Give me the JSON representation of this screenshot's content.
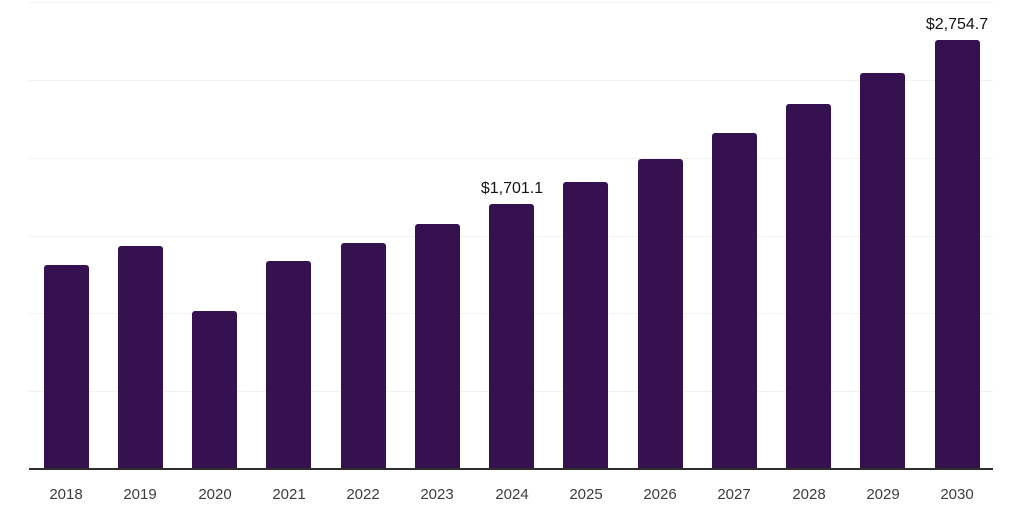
{
  "page": {
    "background": "#ffffff"
  },
  "chart_data": {
    "type": "bar",
    "title": "",
    "xlabel": "",
    "ylabel": "",
    "categories": [
      "2018",
      "2019",
      "2020",
      "2021",
      "2022",
      "2023",
      "2024",
      "2025",
      "2026",
      "2027",
      "2028",
      "2029",
      "2030"
    ],
    "values": [
      1310.5,
      1432.5,
      1016.9,
      1338.3,
      1453.9,
      1573.9,
      1701.1,
      1843.7,
      1991.4,
      2158.4,
      2344.7,
      2543.9,
      2754.7
    ],
    "data_labels": [
      "",
      "",
      "",
      "",
      "",
      "",
      "$1,701.1",
      "",
      "",
      "",
      "",
      "",
      "$2,754.7"
    ],
    "ylim": [
      0,
      3000
    ],
    "grid": true,
    "gridline_values": [
      500,
      1000,
      1500,
      2000,
      2500,
      3000
    ],
    "y_axis_labels_visible": false,
    "legend": "none",
    "colors": {
      "bar": "#351150",
      "gridline": "#f2f2f2",
      "axis_line": "#2e2e2e",
      "tick_label": "#3d3d3d",
      "data_label": "#141414"
    }
  }
}
